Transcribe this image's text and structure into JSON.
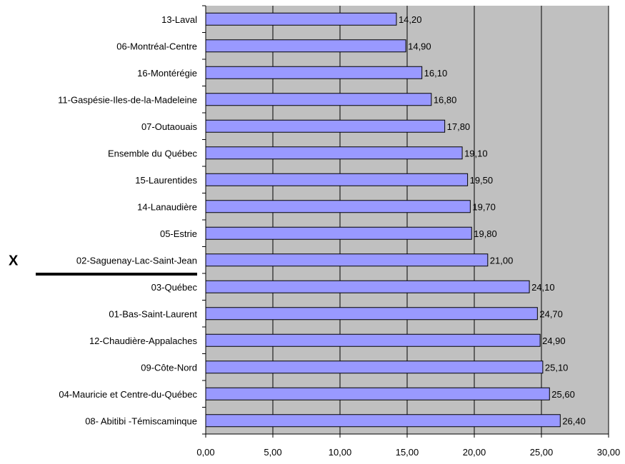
{
  "colors": {
    "plot_background": "#c0c0c0",
    "bar_fill": "#9999ff",
    "bar_stroke": "#000000",
    "gridline": "#000000",
    "text": "#000000"
  },
  "annotations": {
    "marker": "X",
    "marked_category": "02-Saguenay-Lac-Saint-Jean",
    "separator_below": "02-Saguenay-Lac-Saint-Jean"
  },
  "chart_data": {
    "type": "bar",
    "orientation": "horizontal",
    "title": "",
    "xlabel": "",
    "ylabel": "",
    "xlim": [
      0,
      30
    ],
    "x_ticks": [
      0,
      5,
      10,
      15,
      20,
      25,
      30
    ],
    "x_tick_labels": [
      "0,00",
      "5,00",
      "10,00",
      "15,00",
      "20,00",
      "25,00",
      "30,00"
    ],
    "grid": true,
    "legend": "none",
    "categories": [
      "13-Laval",
      "06-Montréal-Centre",
      "16-Montérégie",
      "11-Gaspésie-Iles-de-la-Madeleine",
      "07-Outaouais",
      "Ensemble du Québec",
      "15-Laurentides",
      "14-Lanaudière",
      "05-Estrie",
      "02-Saguenay-Lac-Saint-Jean",
      "03-Québec",
      "01-Bas-Saint-Laurent",
      "12-Chaudière-Appalaches",
      "09-Côte-Nord",
      "04-Mauricie et Centre-du-Québec",
      "08- Abitibi -Témiscaminque"
    ],
    "values": [
      14.2,
      14.9,
      16.1,
      16.8,
      17.8,
      19.1,
      19.5,
      19.7,
      19.8,
      21.0,
      24.1,
      24.7,
      24.9,
      25.1,
      25.6,
      26.4
    ],
    "value_labels": [
      "14,20",
      "14,90",
      "16,10",
      "16,80",
      "17,80",
      "19,10",
      "19,50",
      "19,70",
      "19,80",
      "21,00",
      "24,10",
      "24,70",
      "24,90",
      "25,10",
      "25,60",
      "26,40"
    ]
  }
}
